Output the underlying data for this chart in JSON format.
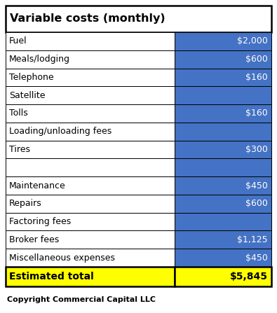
{
  "title": "Variable costs (monthly)",
  "rows": [
    {
      "label": "Fuel",
      "value": "$2,000"
    },
    {
      "label": "Meals/lodging",
      "value": "$600"
    },
    {
      "label": "Telephone",
      "value": "$160"
    },
    {
      "label": "Satellite",
      "value": ""
    },
    {
      "label": "Tolls",
      "value": "$160"
    },
    {
      "label": "Loading/unloading fees",
      "value": ""
    },
    {
      "label": "Tires",
      "value": "$300"
    },
    {
      "label": "",
      "value": ""
    },
    {
      "label": "Maintenance",
      "value": "$450"
    },
    {
      "label": "Repairs",
      "value": "$600"
    },
    {
      "label": "Factoring fees",
      "value": ""
    },
    {
      "label": "Broker fees",
      "value": "$1,125"
    },
    {
      "label": "Miscellaneous expenses",
      "value": "$450"
    }
  ],
  "total_label": "Estimated total",
  "total_value": "$5,845",
  "copyright": "Copyright Commercial Capital LLC",
  "label_col_bg": "#ffffff",
  "value_col_bg": "#4472C4",
  "total_bg": "#FFFF00",
  "total_text_color": "#000000",
  "value_text_color": "#ffffff",
  "label_text_color": "#000000",
  "title_text_color": "#000000",
  "border_color": "#000000",
  "figsize": [
    3.95,
    4.47
  ],
  "dpi": 100
}
